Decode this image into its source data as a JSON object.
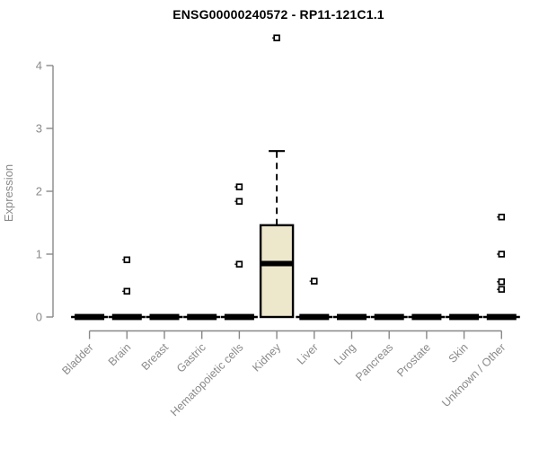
{
  "chart_data": {
    "type": "boxplot",
    "title": "ENSG00000240572 - RP11-121C1.1",
    "ylabel": "Expression",
    "xlabel": "",
    "ylim": [
      0,
      4
    ],
    "yticks": [
      0,
      1,
      2,
      3,
      4
    ],
    "grid": false,
    "legend": "none",
    "categories": [
      "Bladder",
      "Brain",
      "Breast",
      "Gastric",
      "Hematopoietic cells",
      "Kidney",
      "Liver",
      "Lung",
      "Pancreas",
      "Prostate",
      "Skin",
      "Unknown / Other"
    ],
    "boxes": [
      {
        "category": "Bladder",
        "whisker_low": 0,
        "q1": 0,
        "median": 0,
        "q3": 0,
        "whisker_high": 0,
        "outliers": []
      },
      {
        "category": "Brain",
        "whisker_low": 0,
        "q1": 0,
        "median": 0,
        "q3": 0,
        "whisker_high": 0,
        "outliers": [
          0.91,
          0.41
        ]
      },
      {
        "category": "Breast",
        "whisker_low": 0,
        "q1": 0,
        "median": 0,
        "q3": 0,
        "whisker_high": 0,
        "outliers": []
      },
      {
        "category": "Gastric",
        "whisker_low": 0,
        "q1": 0,
        "median": 0,
        "q3": 0,
        "whisker_high": 0,
        "outliers": []
      },
      {
        "category": "Hematopoietic cells",
        "whisker_low": 0,
        "q1": 0,
        "median": 0,
        "q3": 0,
        "whisker_high": 0,
        "outliers": [
          2.07,
          1.84,
          0.84
        ]
      },
      {
        "category": "Kidney",
        "whisker_low": 0,
        "q1": 0,
        "median": 0.85,
        "q3": 1.46,
        "whisker_high": 2.64,
        "outliers": [
          4.44
        ]
      },
      {
        "category": "Liver",
        "whisker_low": 0,
        "q1": 0,
        "median": 0,
        "q3": 0,
        "whisker_high": 0,
        "outliers": [
          0.57
        ]
      },
      {
        "category": "Lung",
        "whisker_low": 0,
        "q1": 0,
        "median": 0,
        "q3": 0,
        "whisker_high": 0,
        "outliers": []
      },
      {
        "category": "Pancreas",
        "whisker_low": 0,
        "q1": 0,
        "median": 0,
        "q3": 0,
        "whisker_high": 0,
        "outliers": []
      },
      {
        "category": "Prostate",
        "whisker_low": 0,
        "q1": 0,
        "median": 0,
        "q3": 0,
        "whisker_high": 0,
        "outliers": []
      },
      {
        "category": "Skin",
        "whisker_low": 0,
        "q1": 0,
        "median": 0,
        "q3": 0,
        "whisker_high": 0,
        "outliers": []
      },
      {
        "category": "Unknown / Other",
        "whisker_low": 0,
        "q1": 0,
        "median": 0,
        "q3": 0,
        "whisker_high": 0,
        "outliers": [
          1.59,
          1.0,
          0.56,
          0.44
        ]
      }
    ],
    "colors": {
      "box_fill": "#EDE7CC",
      "box_stroke": "#000000",
      "median": "#000000",
      "whisker": "#000000",
      "outlier": "#000000",
      "axis": "#888888",
      "tick_label": "#8a8a8a",
      "title": "#000000"
    }
  }
}
